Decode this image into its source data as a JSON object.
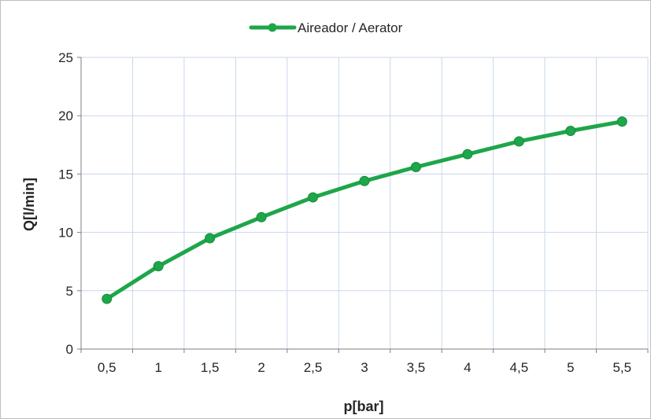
{
  "chart_data": {
    "type": "line",
    "title": "",
    "xlabel": "p[bar]",
    "ylabel": "Q[l/min]",
    "categories": [
      "0,5",
      "1",
      "1,5",
      "2",
      "2,5",
      "3",
      "3,5",
      "4",
      "4,5",
      "5",
      "5,5"
    ],
    "ylim": [
      0,
      25
    ],
    "yticks": [
      "0",
      "5",
      "10",
      "15",
      "20",
      "25"
    ],
    "grid": true,
    "legend_position": "top",
    "series": [
      {
        "name": "Aireador / Aerator",
        "color": "#1ea64a",
        "values": [
          4.3,
          7.1,
          9.5,
          11.3,
          13.0,
          14.4,
          15.6,
          16.7,
          17.8,
          18.7,
          19.5
        ]
      }
    ]
  }
}
